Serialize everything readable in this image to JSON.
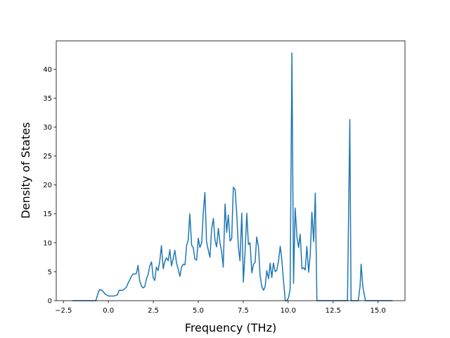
{
  "chart_data": {
    "type": "line",
    "xlabel": "Frequency (THz)",
    "ylabel": "Density of States",
    "color": "#1f77b4",
    "x": [
      -2.0,
      -0.7,
      -0.6,
      -0.5,
      -0.35,
      -0.2,
      0.0,
      0.3,
      0.5,
      0.6,
      0.8,
      1.0,
      1.09,
      1.19,
      1.28,
      1.37,
      1.47,
      1.56,
      1.65,
      1.74,
      1.84,
      1.93,
      2.02,
      2.12,
      2.21,
      2.3,
      2.4,
      2.49,
      2.58,
      2.67,
      2.77,
      2.86,
      2.95,
      3.05,
      3.14,
      3.23,
      3.33,
      3.42,
      3.51,
      3.6,
      3.7,
      3.79,
      3.88,
      3.98,
      4.07,
      4.16,
      4.26,
      4.35,
      4.44,
      4.53,
      4.63,
      4.72,
      4.81,
      4.91,
      5.0,
      5.09,
      5.19,
      5.28,
      5.37,
      5.46,
      5.56,
      5.65,
      5.74,
      5.84,
      5.93,
      6.02,
      6.12,
      6.21,
      6.3,
      6.39,
      6.49,
      6.58,
      6.67,
      6.77,
      6.86,
      6.95,
      7.05,
      7.14,
      7.23,
      7.32,
      7.42,
      7.51,
      7.6,
      7.7,
      7.79,
      7.88,
      7.98,
      8.07,
      8.16,
      8.25,
      8.35,
      8.44,
      8.53,
      8.63,
      8.72,
      8.81,
      8.91,
      9.0,
      9.09,
      9.18,
      9.28,
      9.37,
      9.46,
      9.56,
      9.65,
      9.74,
      9.84,
      9.93,
      10.02,
      10.11,
      10.21,
      10.3,
      10.39,
      10.49,
      10.58,
      10.67,
      10.77,
      10.86,
      10.95,
      11.04,
      11.14,
      11.23,
      11.32,
      11.42,
      11.51,
      11.6,
      13.3,
      13.43,
      13.5,
      13.9,
      14.0,
      14.06,
      14.15,
      14.3,
      15.8
    ],
    "values": [
      0,
      0,
      1.0,
      1.9,
      1.8,
      1.2,
      0.8,
      0.8,
      1.0,
      1.8,
      1.8,
      2.3,
      3.0,
      3.6,
      4.2,
      4.6,
      4.6,
      4.7,
      6.1,
      3.5,
      2.5,
      2.2,
      2.4,
      3.8,
      4.5,
      6.0,
      6.7,
      4.0,
      3.5,
      5.8,
      5.2,
      6.9,
      9.5,
      5.5,
      6.8,
      7.4,
      6.9,
      8.8,
      6.0,
      7.2,
      8.7,
      6.5,
      5.5,
      4.2,
      5.8,
      6.3,
      6.2,
      9.5,
      10.5,
      15.0,
      9.6,
      9.2,
      7.2,
      7.0,
      10.8,
      9.2,
      10.0,
      15.3,
      18.7,
      10.2,
      8.7,
      7.5,
      12.3,
      14.2,
      10.5,
      9.3,
      12.5,
      10.0,
      8.5,
      5.8,
      16.7,
      11.8,
      14.8,
      10.3,
      10.7,
      19.6,
      19.2,
      15.0,
      9.3,
      6.9,
      15.1,
      3.2,
      8.2,
      15.1,
      9.7,
      10.0,
      4.8,
      6.3,
      6.6,
      11.0,
      9.3,
      4.3,
      2.5,
      1.8,
      2.4,
      5.2,
      3.8,
      6.5,
      4.0,
      6.5,
      5.0,
      5.3,
      6.8,
      9.4,
      7.0,
      3.5,
      0,
      0,
      0.5,
      2.0,
      42.8,
      3.0,
      16.0,
      11.0,
      9.2,
      11.5,
      5.5,
      5.7,
      5.3,
      9.4,
      4.9,
      8.0,
      15.3,
      10.2,
      18.6,
      0,
      0,
      31.3,
      0,
      0,
      2.5,
      6.3,
      2.5,
      0,
      0
    ],
    "xlim": [
      -2.9,
      16.5
    ],
    "xticks": [
      {
        "value": -2.5,
        "label": "−2.5"
      },
      {
        "value": 0,
        "label": "0.0"
      },
      {
        "value": 2.5,
        "label": "2.5"
      },
      {
        "value": 5,
        "label": "5.0"
      },
      {
        "value": 7.5,
        "label": "7.5"
      },
      {
        "value": 10,
        "label": "10.0"
      },
      {
        "value": 12.5,
        "label": "12.5"
      },
      {
        "value": 15,
        "label": "15.0"
      }
    ],
    "ylim": [
      0,
      44.9
    ],
    "yticks": [
      0,
      5,
      10,
      15,
      20,
      25,
      30,
      35,
      40
    ]
  }
}
